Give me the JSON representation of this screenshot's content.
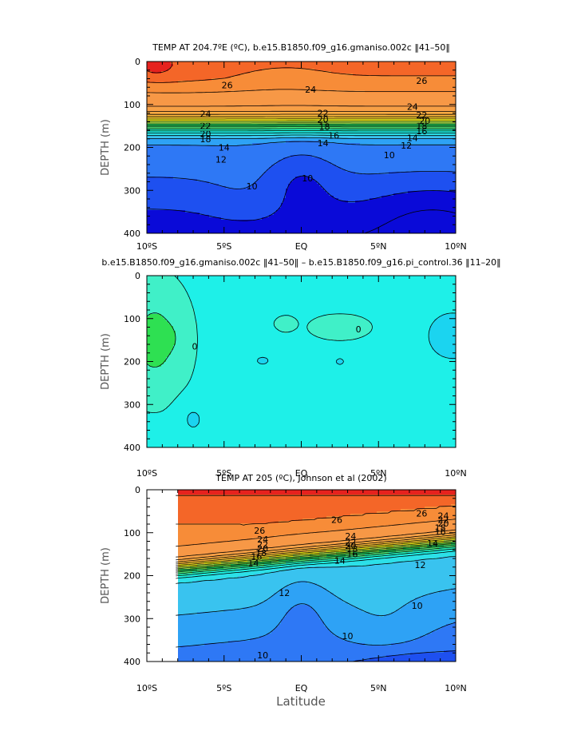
{
  "figure": {
    "xlabel": "Latitude"
  },
  "chart_data": [
    {
      "type": "heatmap",
      "id": "p1",
      "title": "TEMP AT 204.7ºE (ºC), b.e15.B1850.f09_g16.gmaniso.002c ‖41–50‖",
      "ylabel": "DEPTH (m)",
      "xlim": [
        -10,
        10
      ],
      "ylim": [
        400,
        0
      ],
      "x_ticks": [
        "10ºS",
        "5ºS",
        "EQ",
        "5ºN",
        "10ºN"
      ],
      "y_ticks": [
        "0",
        "100",
        "200",
        "300",
        "400"
      ],
      "contour_levels": [
        8,
        9,
        10,
        11,
        12,
        13,
        14,
        15,
        16,
        17,
        18,
        19,
        20,
        21,
        22,
        23,
        24,
        25,
        26,
        27,
        28
      ],
      "contour_labels": [
        {
          "x": -4.8,
          "y": 55,
          "text": "26"
        },
        {
          "x": 7.8,
          "y": 45,
          "text": "26"
        },
        {
          "x": 0.6,
          "y": 65,
          "text": "24"
        },
        {
          "x": -6.2,
          "y": 122,
          "text": "24"
        },
        {
          "x": 7.2,
          "y": 105,
          "text": "24"
        },
        {
          "x": -6.2,
          "y": 150,
          "text": "22"
        },
        {
          "x": 1.4,
          "y": 120,
          "text": "22"
        },
        {
          "x": 7.8,
          "y": 125,
          "text": "22"
        },
        {
          "x": -6.2,
          "y": 168,
          "text": "20"
        },
        {
          "x": 1.4,
          "y": 135,
          "text": "20"
        },
        {
          "x": 8.0,
          "y": 138,
          "text": "20"
        },
        {
          "x": -6.2,
          "y": 180,
          "text": "18"
        },
        {
          "x": 1.5,
          "y": 152,
          "text": "18"
        },
        {
          "x": 7.8,
          "y": 150,
          "text": "18"
        },
        {
          "x": 2.1,
          "y": 172,
          "text": "16"
        },
        {
          "x": 7.8,
          "y": 162,
          "text": "16"
        },
        {
          "x": 1.4,
          "y": 190,
          "text": "14"
        },
        {
          "x": -5.0,
          "y": 200,
          "text": "14"
        },
        {
          "x": 7.2,
          "y": 178,
          "text": "14"
        },
        {
          "x": -5.2,
          "y": 228,
          "text": "12"
        },
        {
          "x": 6.8,
          "y": 195,
          "text": "12"
        },
        {
          "x": -3.2,
          "y": 290,
          "text": "10"
        },
        {
          "x": 0.4,
          "y": 272,
          "text": "10"
        },
        {
          "x": 5.7,
          "y": 218,
          "text": "10"
        }
      ]
    },
    {
      "type": "heatmap",
      "id": "p2",
      "title": "b.e15.B1850.f09_g16.gmaniso.002c ‖41–50‖ – b.e15.B1850.f09_g16.pi_control.36 ‖11–20‖",
      "ylabel": "DEPTH (m)",
      "xlim": [
        -10,
        10
      ],
      "ylim": [
        400,
        0
      ],
      "x_ticks": [
        "10ºS",
        "5ºS",
        "EQ",
        "5ºN",
        "10ºN"
      ],
      "y_ticks": [
        "0",
        "100",
        "200",
        "300",
        "400"
      ],
      "contour_levels": [
        -1,
        0,
        1
      ],
      "contour_labels": [
        {
          "x": -6.9,
          "y": 165,
          "text": "0"
        },
        {
          "x": 3.7,
          "y": 125,
          "text": "0"
        }
      ]
    },
    {
      "type": "heatmap",
      "id": "p3",
      "title": "TEMP AT 205 (ºC), Johnson et al (2002)",
      "ylabel": "DEPTH (m)",
      "xlim": [
        -10,
        10
      ],
      "ylim": [
        400,
        0
      ],
      "x_ticks": [
        "10ºS",
        "5ºS",
        "EQ",
        "5ºN",
        "10ºN"
      ],
      "y_ticks": [
        "0",
        "100",
        "200",
        "300",
        "400"
      ],
      "contour_levels": [
        8,
        9,
        10,
        11,
        12,
        13,
        14,
        15,
        16,
        17,
        18,
        19,
        20,
        21,
        22,
        23,
        24,
        25,
        26,
        27,
        28
      ],
      "contour_labels": [
        {
          "x": -2.7,
          "y": 95,
          "text": "26"
        },
        {
          "x": 2.3,
          "y": 70,
          "text": "26"
        },
        {
          "x": 7.8,
          "y": 55,
          "text": "26"
        },
        {
          "x": -2.5,
          "y": 115,
          "text": "24"
        },
        {
          "x": 3.2,
          "y": 108,
          "text": "24"
        },
        {
          "x": 9.2,
          "y": 60,
          "text": "24"
        },
        {
          "x": -2.5,
          "y": 127,
          "text": "22"
        },
        {
          "x": 3.2,
          "y": 122,
          "text": "22"
        },
        {
          "x": 9.2,
          "y": 70,
          "text": "22"
        },
        {
          "x": -2.5,
          "y": 137,
          "text": "20"
        },
        {
          "x": 3.2,
          "y": 130,
          "text": "20"
        },
        {
          "x": 9.2,
          "y": 78,
          "text": "20"
        },
        {
          "x": -2.6,
          "y": 147,
          "text": "18"
        },
        {
          "x": 3.3,
          "y": 138,
          "text": "18"
        },
        {
          "x": 9.0,
          "y": 88,
          "text": "18"
        },
        {
          "x": -2.9,
          "y": 155,
          "text": "16"
        },
        {
          "x": 3.3,
          "y": 150,
          "text": "16"
        },
        {
          "x": 9.0,
          "y": 98,
          "text": "16"
        },
        {
          "x": -3.1,
          "y": 170,
          "text": "14"
        },
        {
          "x": 2.5,
          "y": 165,
          "text": "14"
        },
        {
          "x": 8.5,
          "y": 125,
          "text": "14"
        },
        {
          "x": -1.1,
          "y": 240,
          "text": "12"
        },
        {
          "x": 7.7,
          "y": 175,
          "text": "12"
        },
        {
          "x": 7.5,
          "y": 270,
          "text": "10"
        },
        {
          "x": 3.0,
          "y": 340,
          "text": "10"
        },
        {
          "x": -2.5,
          "y": 385,
          "text": "10"
        }
      ]
    }
  ]
}
